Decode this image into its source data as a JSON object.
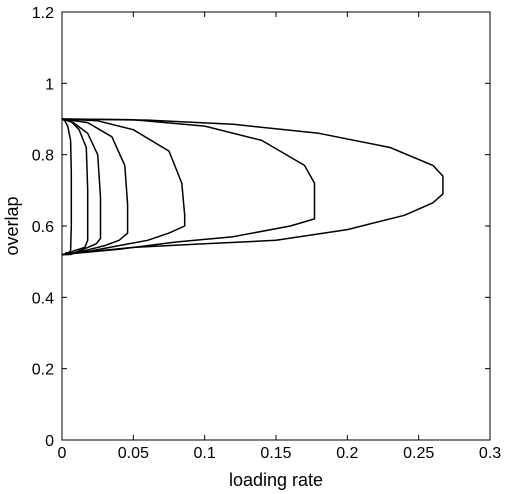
{
  "chart_data": {
    "type": "line",
    "title": "",
    "xlabel": "loading rate",
    "ylabel": "overlap",
    "xlim": [
      0,
      0.3
    ],
    "ylim": [
      0,
      1.2
    ],
    "grid": false,
    "legend": "none",
    "line_color": "#000000",
    "xticks": [
      0,
      0.05,
      0.1,
      0.15,
      0.2,
      0.25,
      0.3
    ],
    "xtick_labels": [
      "0",
      "0.05",
      "0.1",
      "0.15",
      "0.2",
      "0.25",
      "0.3"
    ],
    "yticks": [
      0,
      0.2,
      0.4,
      0.6,
      0.8,
      1,
      1.2
    ],
    "ytick_labels": [
      "0",
      "0.2",
      "0.4",
      "0.6",
      "0.8",
      "1",
      "1.2"
    ],
    "series": [
      {
        "x": [
          0.0,
          0.0015,
          0.003,
          0.0045,
          0.006,
          0.0065,
          0.0065,
          0.006,
          0.004,
          0.002,
          0.0
        ],
        "y": [
          0.52,
          0.52,
          0.525,
          0.525,
          0.53,
          0.6,
          0.75,
          0.84,
          0.88,
          0.895,
          0.9
        ]
      },
      {
        "x": [
          0.0,
          0.004,
          0.008,
          0.012,
          0.016,
          0.018,
          0.018,
          0.017,
          0.012,
          0.006,
          0.0
        ],
        "y": [
          0.52,
          0.52,
          0.53,
          0.535,
          0.54,
          0.56,
          0.7,
          0.82,
          0.87,
          0.895,
          0.9
        ]
      },
      {
        "x": [
          0.0,
          0.006,
          0.012,
          0.018,
          0.024,
          0.027,
          0.027,
          0.025,
          0.018,
          0.008,
          0.0
        ],
        "y": [
          0.52,
          0.52,
          0.53,
          0.54,
          0.55,
          0.565,
          0.68,
          0.8,
          0.86,
          0.89,
          0.9
        ]
      },
      {
        "x": [
          0.0,
          0.01,
          0.02,
          0.03,
          0.04,
          0.046,
          0.046,
          0.044,
          0.035,
          0.018,
          0.0
        ],
        "y": [
          0.52,
          0.525,
          0.535,
          0.545,
          0.56,
          0.58,
          0.66,
          0.77,
          0.85,
          0.89,
          0.9
        ]
      },
      {
        "x": [
          0.0,
          0.02,
          0.04,
          0.06,
          0.075,
          0.086,
          0.086,
          0.084,
          0.075,
          0.05,
          0.025,
          0.0
        ],
        "y": [
          0.52,
          0.53,
          0.545,
          0.56,
          0.58,
          0.6,
          0.63,
          0.72,
          0.81,
          0.87,
          0.895,
          0.9
        ]
      },
      {
        "x": [
          0.0,
          0.04,
          0.08,
          0.12,
          0.16,
          0.177,
          0.177,
          0.17,
          0.14,
          0.1,
          0.05,
          0.0
        ],
        "y": [
          0.52,
          0.535,
          0.555,
          0.57,
          0.6,
          0.62,
          0.72,
          0.77,
          0.84,
          0.88,
          0.898,
          0.9
        ]
      },
      {
        "x": [
          0.0,
          0.05,
          0.1,
          0.15,
          0.2,
          0.24,
          0.26,
          0.267,
          0.267,
          0.26,
          0.23,
          0.18,
          0.12,
          0.06,
          0.0
        ],
        "y": [
          0.52,
          0.54,
          0.55,
          0.56,
          0.59,
          0.63,
          0.665,
          0.69,
          0.74,
          0.77,
          0.82,
          0.86,
          0.885,
          0.897,
          0.9
        ]
      }
    ]
  }
}
